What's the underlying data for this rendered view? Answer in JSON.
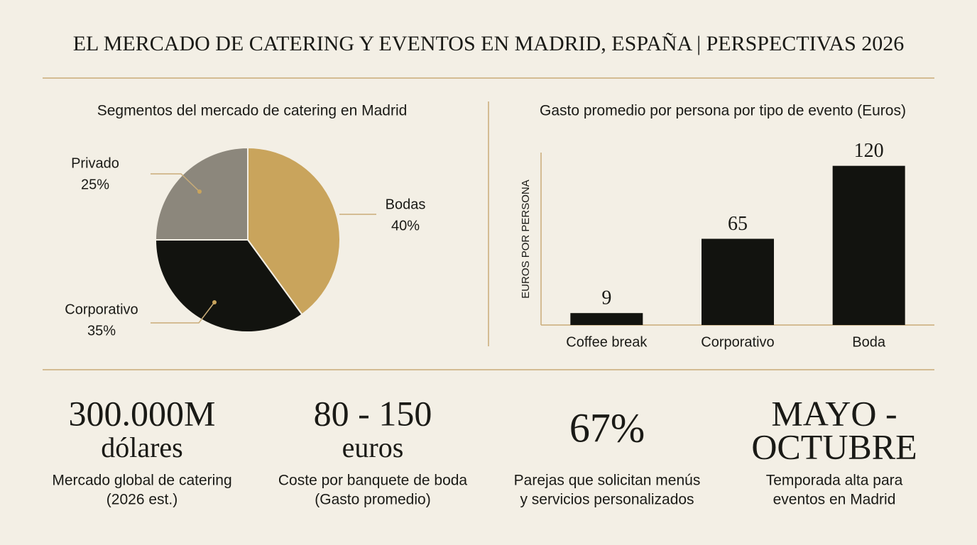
{
  "header": {
    "title": "EL MERCADO DE CATERING Y EVENTOS EN MADRID, ESPAÑA | PERSPECTIVAS 2026"
  },
  "chart_data": [
    {
      "type": "pie",
      "title": "Segmentos del mercado de catering en Madrid",
      "categories": [
        "Bodas",
        "Corporativo",
        "Privado"
      ],
      "values": [
        40,
        35,
        25
      ],
      "value_labels": [
        "40%",
        "35%",
        "25%"
      ],
      "colors": [
        "#c9a45c",
        "#12130f",
        "#8c877c"
      ]
    },
    {
      "type": "bar",
      "title": "Gasto promedio por persona por tipo de evento (Euros)",
      "y_label": "EUROS POR PERSONA",
      "categories": [
        "Coffee break",
        "Corporativo",
        "Boda"
      ],
      "values": [
        9,
        65,
        120
      ],
      "color": "#12130f",
      "ylim": [
        0,
        130
      ]
    }
  ],
  "stats": [
    {
      "headline": [
        "300.000M",
        "dólares"
      ],
      "caption": [
        "Mercado global de catering",
        "(2026 est.)"
      ]
    },
    {
      "headline": [
        "80 - 150",
        "euros"
      ],
      "caption": [
        "Coste por banquete de boda",
        "(Gasto promedio)"
      ]
    },
    {
      "headline": [
        "67%"
      ],
      "caption": [
        "Parejas que solicitan menús",
        "y servicios personalizados"
      ]
    },
    {
      "headline": [
        "MAYO -",
        "OCTUBRE"
      ],
      "caption": [
        "Temporada alta para",
        "eventos en Madrid"
      ]
    }
  ]
}
